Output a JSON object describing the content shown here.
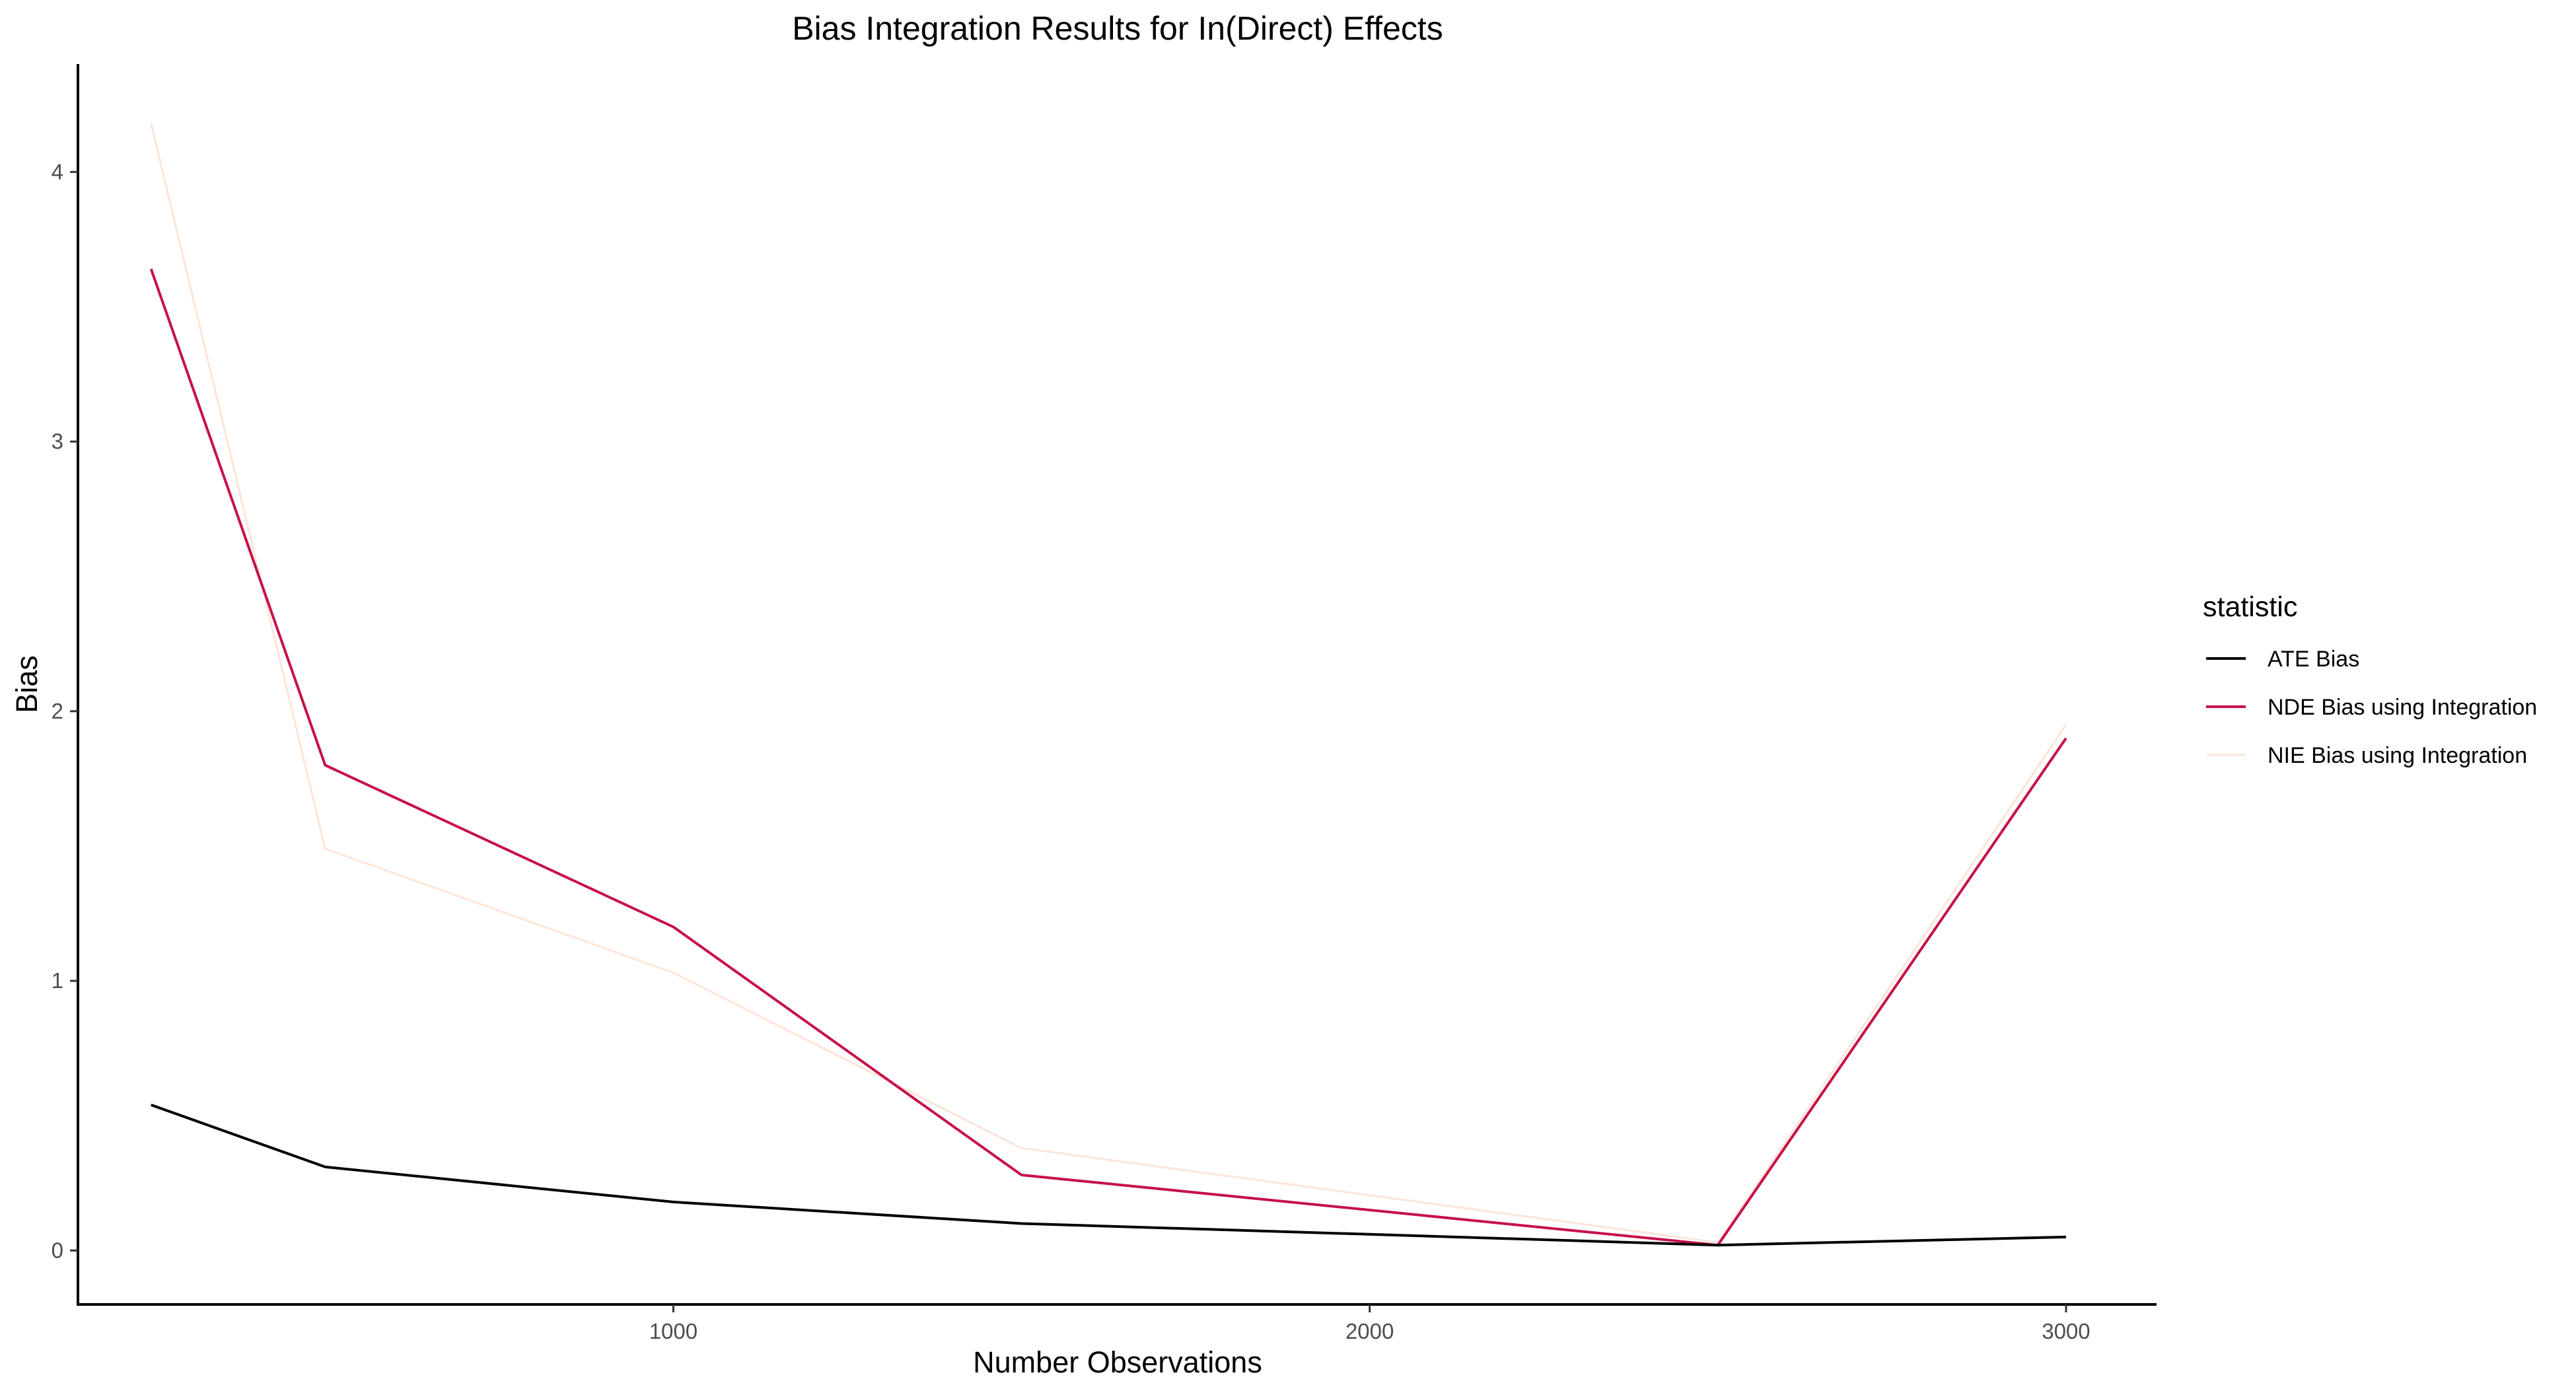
{
  "chart_data": {
    "type": "line",
    "title": "Bias Integration Results for In(Direct) Effects",
    "xlabel": "Number Observations",
    "ylabel": "Bias",
    "xlim": [
      145,
      3130
    ],
    "ylim": [
      -0.2,
      4.4
    ],
    "x_ticks": [
      1000,
      2000,
      3000
    ],
    "x_tick_labels": [
      "1000",
      "2000",
      "3000"
    ],
    "y_ticks": [
      0,
      1,
      2,
      3,
      4
    ],
    "y_tick_labels": [
      "0",
      "1",
      "2",
      "3",
      "4"
    ],
    "grid": false,
    "legend_position": "right",
    "legend_title": "statistic",
    "x": [
      250,
      500,
      1000,
      1500,
      2500,
      3000
    ],
    "series": [
      {
        "name": "ATE Bias",
        "color": "#000000",
        "values": [
          0.54,
          0.31,
          0.18,
          0.1,
          0.02,
          0.05
        ]
      },
      {
        "name": "NDE Bias using Integration",
        "color": "#c7104a",
        "values": [
          3.64,
          1.8,
          1.2,
          0.28,
          0.02,
          1.9
        ]
      },
      {
        "name": "NIE Bias using Integration",
        "color": "#fde5d7",
        "values": [
          4.18,
          1.49,
          1.03,
          0.38,
          0.03,
          1.95
        ]
      }
    ]
  }
}
